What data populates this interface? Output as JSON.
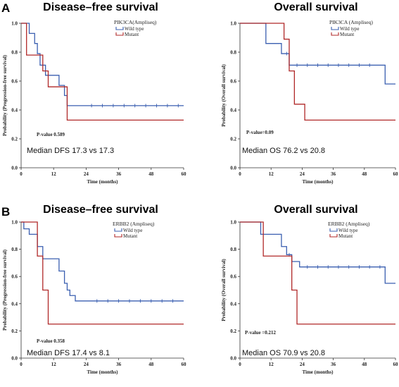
{
  "panel_letters": [
    "A",
    "B"
  ],
  "chart_data": [
    {
      "type": "line",
      "panel": "A",
      "title": "Disease–free survival",
      "xlabel": "Time (months)",
      "ylabel": "Probability (Progression-free survival)",
      "xlim": [
        0,
        60
      ],
      "ylim": [
        0,
        1.0
      ],
      "x_ticks": [
        0,
        12,
        24,
        36,
        48,
        60
      ],
      "y_ticks": [
        "0.0",
        "0.2",
        "0.4",
        "0.6",
        "0.8",
        "1.0"
      ],
      "legend_title": "PIK3CA(Ampliseq)",
      "legend_position": "top-right",
      "p_value": "P-value 0.589",
      "median": "Median DFS 17.3 vs 17.3",
      "series": [
        {
          "name": "Wild type",
          "color": "#3a5fb0",
          "steps": [
            [
              0,
              1.0
            ],
            [
              3,
              0.93
            ],
            [
              5,
              0.86
            ],
            [
              6,
              0.79
            ],
            [
              7,
              0.71
            ],
            [
              9,
              0.64
            ],
            [
              14,
              0.57
            ],
            [
              16,
              0.5
            ],
            [
              17,
              0.43
            ],
            [
              20,
              0.43
            ],
            [
              60,
              0.43
            ]
          ],
          "censor_x": [
            26,
            30,
            34,
            38,
            42,
            46,
            50,
            54,
            58
          ]
        },
        {
          "name": "Mutant",
          "color": "#b02828",
          "steps": [
            [
              0,
              1.0
            ],
            [
              2,
              0.78
            ],
            [
              8,
              0.67
            ],
            [
              10,
              0.56
            ],
            [
              17,
              0.33
            ],
            [
              60,
              0.33
            ]
          ],
          "censor_x": []
        }
      ]
    },
    {
      "type": "line",
      "panel": "A",
      "title": "Overall survival",
      "xlabel": "Time (months)",
      "ylabel": "Probability (Overall survival)",
      "xlim": [
        0,
        60
      ],
      "ylim": [
        0,
        1.0
      ],
      "x_ticks": [
        0,
        12,
        24,
        36,
        48,
        60
      ],
      "y_ticks": [
        "0.0",
        "0.2",
        "0.4",
        "0.6",
        "0.8",
        "1.0"
      ],
      "legend_title": "PIK3CA (Ampliseq)",
      "legend_position": "top-right",
      "p_value": "P-value=0.09",
      "median": "Median OS 76.2 vs 20.8",
      "series": [
        {
          "name": "Wild type",
          "color": "#3a5fb0",
          "steps": [
            [
              0,
              1.0
            ],
            [
              10,
              0.86
            ],
            [
              16,
              0.79
            ],
            [
              19,
              0.71
            ],
            [
              56,
              0.58
            ],
            [
              60,
              0.58
            ]
          ],
          "censor_x": [
            18,
            22,
            26,
            30,
            34,
            38,
            42,
            46,
            50
          ]
        },
        {
          "name": "Mutant",
          "color": "#b02828",
          "steps": [
            [
              0,
              1.0
            ],
            [
              17,
              0.89
            ],
            [
              19,
              0.67
            ],
            [
              21,
              0.44
            ],
            [
              25,
              0.33
            ],
            [
              60,
              0.33
            ]
          ],
          "censor_x": []
        }
      ]
    },
    {
      "type": "line",
      "panel": "B",
      "title": "Disease–free survival",
      "xlabel": "Time (months)",
      "ylabel": "Probability (Progression-free survival)",
      "xlim": [
        0,
        60
      ],
      "ylim": [
        0,
        1.0
      ],
      "x_ticks": [
        0,
        12,
        24,
        36,
        48,
        60
      ],
      "y_ticks": [
        "0.0",
        "0.2",
        "0.4",
        "0.6",
        "0.8",
        "1.0"
      ],
      "legend_title": "ERBB2  (Ampliseq)",
      "legend_position": "top-right",
      "p_value": "P-value 0.358",
      "median": "Median DFS 17.4 vs 8.1",
      "series": [
        {
          "name": "Wild type",
          "color": "#3a5fb0",
          "steps": [
            [
              0,
              1.0
            ],
            [
              1,
              0.95
            ],
            [
              3,
              0.91
            ],
            [
              6,
              0.82
            ],
            [
              8,
              0.73
            ],
            [
              14,
              0.64
            ],
            [
              16,
              0.55
            ],
            [
              17,
              0.5
            ],
            [
              18,
              0.46
            ],
            [
              20,
              0.42
            ],
            [
              60,
              0.42
            ]
          ],
          "censor_x": [
            28,
            32,
            36,
            40,
            44,
            48,
            52,
            56
          ]
        },
        {
          "name": "Mutant",
          "color": "#b02828",
          "steps": [
            [
              0,
              1.0
            ],
            [
              6,
              0.75
            ],
            [
              8,
              0.5
            ],
            [
              10,
              0.25
            ],
            [
              60,
              0.25
            ]
          ],
          "censor_x": []
        }
      ]
    },
    {
      "type": "line",
      "panel": "B",
      "title": "Overall survival",
      "xlabel": "Time (months)",
      "ylabel": "Probability (Overall survival)",
      "xlim": [
        0,
        60
      ],
      "ylim": [
        0,
        1.0
      ],
      "x_ticks": [
        0,
        12,
        24,
        36,
        48,
        60
      ],
      "y_ticks": [
        "0.0",
        "0.2",
        "0.4",
        "0.6",
        "0.8",
        "1.0"
      ],
      "legend_title": "ERBB2  (Ampliseq)",
      "legend_position": "top-right",
      "p_value": "P-value =0.212",
      "median": "Median OS 70.9 vs 20.8",
      "series": [
        {
          "name": "Wild type",
          "color": "#3a5fb0",
          "steps": [
            [
              0,
              1.0
            ],
            [
              8,
              0.91
            ],
            [
              16,
              0.82
            ],
            [
              18,
              0.76
            ],
            [
              20,
              0.71
            ],
            [
              23,
              0.67
            ],
            [
              56,
              0.55
            ],
            [
              60,
              0.55
            ]
          ],
          "censor_x": [
            19,
            26,
            30,
            34,
            38,
            42,
            46,
            50,
            54
          ]
        },
        {
          "name": "Mutant",
          "color": "#b02828",
          "steps": [
            [
              0,
              1.0
            ],
            [
              9,
              0.75
            ],
            [
              20,
              0.5
            ],
            [
              22,
              0.25
            ],
            [
              60,
              0.25
            ]
          ],
          "censor_x": []
        }
      ]
    }
  ]
}
